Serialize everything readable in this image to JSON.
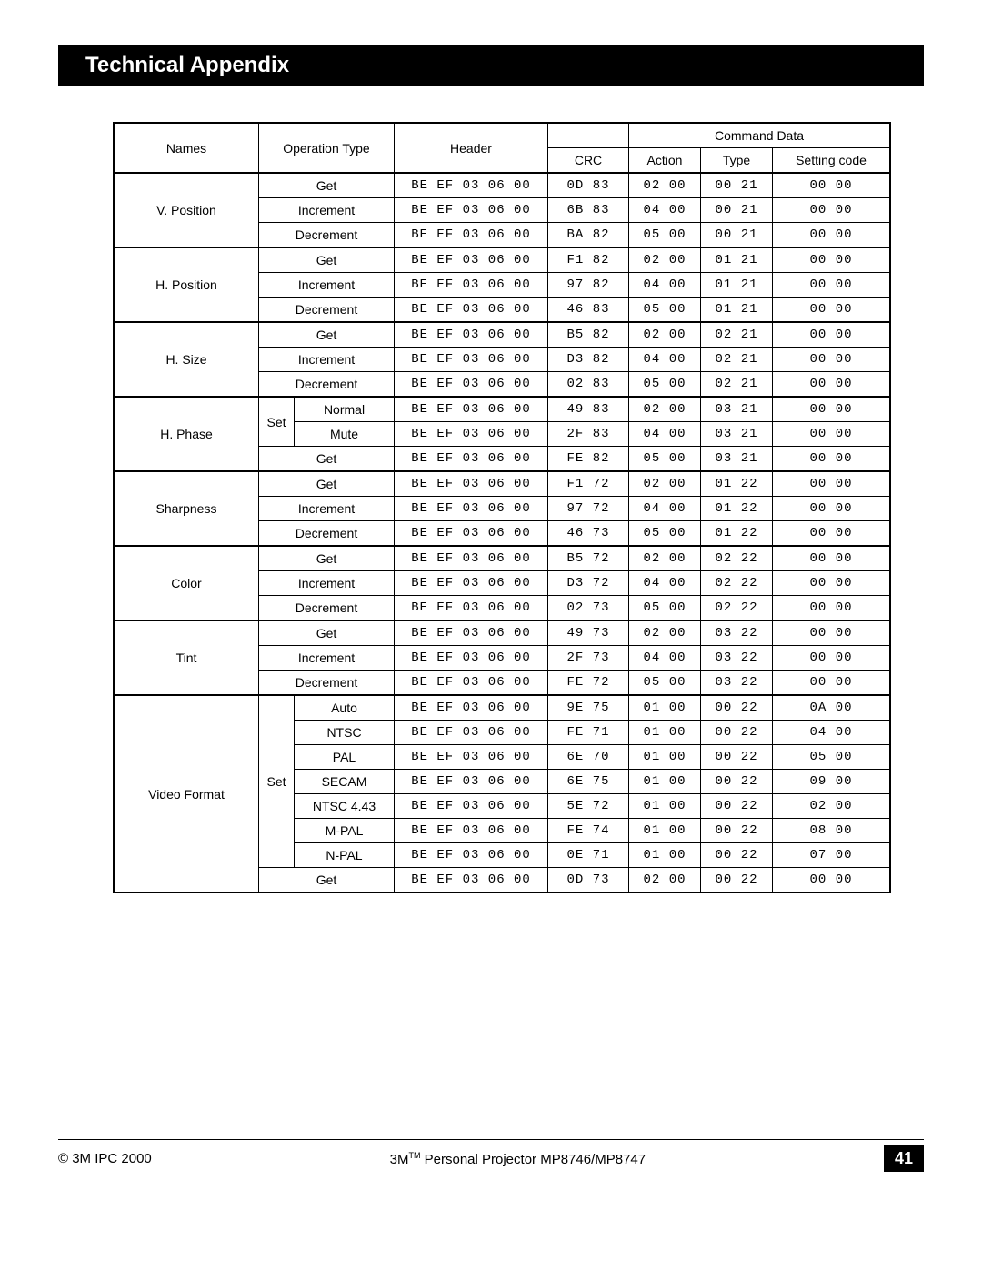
{
  "header": {
    "title": "Technical Appendix"
  },
  "table": {
    "columns": {
      "names": "Names",
      "operation": "Operation Type",
      "header": "Header",
      "command_data": "Command Data",
      "crc": "CRC",
      "action": "Action",
      "type": "Type",
      "setting": "Setting code"
    },
    "header_val": "BE  EF    03    06    00",
    "groups": [
      {
        "name": "V. Position",
        "rows": [
          {
            "op": "Get",
            "crc": "0D  83",
            "action": "02  00",
            "type": "00  21",
            "setting": "00  00"
          },
          {
            "op": "Increment",
            "crc": "6B  83",
            "action": "04  00",
            "type": "00  21",
            "setting": "00  00"
          },
          {
            "op": "Decrement",
            "crc": "BA  82",
            "action": "05  00",
            "type": "00  21",
            "setting": "00  00"
          }
        ]
      },
      {
        "name": "H. Position",
        "rows": [
          {
            "op": "Get",
            "crc": "F1  82",
            "action": "02 00",
            "type": "01  21",
            "setting": "00  00"
          },
          {
            "op": "Increment",
            "crc": "97  82",
            "action": "04  00",
            "type": "01  21",
            "setting": "00  00"
          },
          {
            "op": "Decrement",
            "crc": "46  83",
            "action": "05  00",
            "type": "01  21",
            "setting": "00  00"
          }
        ]
      },
      {
        "name": "H. Size",
        "rows": [
          {
            "op": "Get",
            "crc": "B5  82",
            "action": "02  00",
            "type": "02  21",
            "setting": "00  00"
          },
          {
            "op": "Increment",
            "crc": "D3  82",
            "action": "04  00",
            "type": "02  21",
            "setting": "00  00"
          },
          {
            "op": "Decrement",
            "crc": "02  83",
            "action": "05  00",
            "type": "02  21",
            "setting": "00  00"
          }
        ]
      },
      {
        "name": "H. Phase",
        "set_label": "Set",
        "set_rows": [
          {
            "op": "Normal",
            "crc": "49  83",
            "action": "02  00",
            "type": "03  21",
            "setting": "00  00"
          },
          {
            "op": "Mute",
            "crc": "2F  83",
            "action": "04  00",
            "type": "03  21",
            "setting": "00  00"
          }
        ],
        "rows": [
          {
            "op": "Get",
            "crc": "FE  82",
            "action": "05  00",
            "type": "03  21",
            "setting": "00  00"
          }
        ]
      },
      {
        "name": "Sharpness",
        "rows": [
          {
            "op": "Get",
            "crc": "F1  72",
            "action": "02  00",
            "type": "01  22",
            "setting": "00  00"
          },
          {
            "op": "Increment",
            "crc": "97  72",
            "action": "04  00",
            "type": "01  22",
            "setting": "00  00"
          },
          {
            "op": "Decrement",
            "crc": "46  73",
            "action": "05  00",
            "type": "01  22",
            "setting": "00  00"
          }
        ]
      },
      {
        "name": "Color",
        "rows": [
          {
            "op": "Get",
            "crc": "B5  72",
            "action": "02  00",
            "type": "02  22",
            "setting": "00  00"
          },
          {
            "op": "Increment",
            "crc": "D3  72",
            "action": "04  00",
            "type": "02  22",
            "setting": "00  00"
          },
          {
            "op": "Decrement",
            "crc": "02  73",
            "action": "05  00",
            "type": "02  22",
            "setting": "00  00"
          }
        ]
      },
      {
        "name": "Tint",
        "rows": [
          {
            "op": "Get",
            "crc": "49  73",
            "action": "02  00",
            "type": "03  22",
            "setting": "00  00"
          },
          {
            "op": "Increment",
            "crc": "2F  73",
            "action": "04  00",
            "type": "03  22",
            "setting": "00  00"
          },
          {
            "op": "Decrement",
            "crc": "FE  72",
            "action": "05  00",
            "type": "03  22",
            "setting": "00  00"
          }
        ]
      },
      {
        "name": "Video Format",
        "set_label": "Set",
        "set_rows": [
          {
            "op": "Auto",
            "crc": "9E  75",
            "action": "01  00",
            "type": "00  22",
            "setting": "0A  00"
          },
          {
            "op": "NTSC",
            "crc": "FE  71",
            "action": "01  00",
            "type": "00  22",
            "setting": "04  00"
          },
          {
            "op": "PAL",
            "crc": "6E  70",
            "action": "01  00",
            "type": "00  22",
            "setting": "05  00"
          },
          {
            "op": "SECAM",
            "crc": "6E  75",
            "action": "01  00",
            "type": "00  22",
            "setting": "09  00"
          },
          {
            "op": "NTSC 4.43",
            "crc": "5E  72",
            "action": "01  00",
            "type": "00  22",
            "setting": "02  00"
          },
          {
            "op": "M-PAL",
            "crc": "FE  74",
            "action": "01  00",
            "type": "00  22",
            "setting": "08  00"
          },
          {
            "op": "N-PAL",
            "crc": "0E  71",
            "action": "01  00",
            "type": "00  22",
            "setting": "07  00"
          }
        ],
        "rows": [
          {
            "op": "Get",
            "crc": "0D  73",
            "action": "02  00",
            "type": "00  22",
            "setting": "00  00"
          }
        ]
      }
    ]
  },
  "footer": {
    "copyright": "© 3M IPC 2000",
    "product": "3M™ Personal Projector MP8746/MP8747",
    "page": "41"
  }
}
